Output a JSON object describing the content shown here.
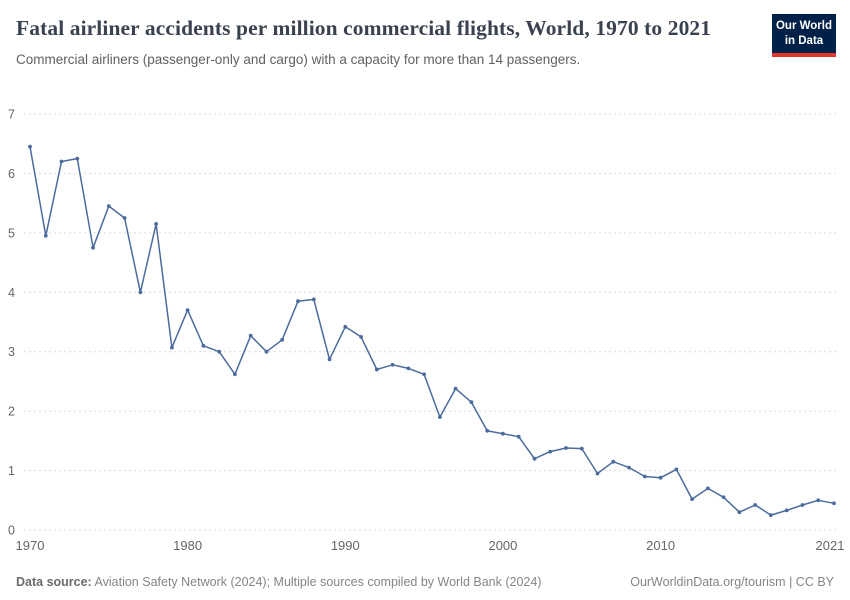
{
  "header": {
    "title": "Fatal airliner accidents per million commercial flights, World, 1970 to 2021",
    "subtitle": "Commercial airliners (passenger-only and cargo) with a capacity for more than 14 passengers.",
    "logo": {
      "line1": "Our World",
      "line2": "in Data",
      "bg_color": "#002147",
      "accent_color": "#e0362c"
    }
  },
  "footer": {
    "source_label": "Data source:",
    "source_text": " Aviation Safety Network (2024); Multiple sources compiled by World Bank (2024)",
    "credit_text": "OurWorldinData.org/tourism | CC BY"
  },
  "chart_data": {
    "type": "line",
    "title": "Fatal airliner accidents per million commercial flights, World, 1970 to 2021",
    "xlabel": "",
    "ylabel": "",
    "ylim": [
      0,
      7
    ],
    "yticks": [
      0,
      1,
      2,
      3,
      4,
      5,
      6,
      7
    ],
    "xticks": [
      1970,
      1980,
      1990,
      2000,
      2010,
      2021
    ],
    "grid": "dashed-horizontal",
    "line_color": "#4c6b9c",
    "tick_color": "#666666",
    "grid_color": "#dcdcdc",
    "x": [
      1970,
      1971,
      1972,
      1973,
      1974,
      1975,
      1976,
      1977,
      1978,
      1979,
      1980,
      1981,
      1982,
      1983,
      1984,
      1985,
      1986,
      1987,
      1988,
      1989,
      1990,
      1991,
      1992,
      1993,
      1994,
      1995,
      1996,
      1997,
      1998,
      1999,
      2000,
      2001,
      2002,
      2003,
      2004,
      2005,
      2006,
      2007,
      2008,
      2009,
      2010,
      2011,
      2012,
      2013,
      2014,
      2015,
      2016,
      2017,
      2018,
      2019,
      2020,
      2021
    ],
    "values": [
      6.45,
      4.95,
      6.2,
      6.25,
      4.75,
      5.45,
      5.25,
      4.0,
      5.15,
      3.07,
      3.7,
      3.1,
      3.0,
      2.62,
      3.27,
      3.0,
      3.2,
      3.85,
      3.88,
      2.87,
      3.42,
      3.25,
      2.7,
      2.78,
      2.72,
      2.62,
      1.9,
      2.38,
      2.15,
      1.67,
      1.62,
      1.57,
      1.2,
      1.32,
      1.38,
      1.37,
      0.95,
      1.15,
      1.05,
      0.9,
      0.88,
      1.02,
      0.52,
      0.7,
      0.55,
      0.3,
      0.42,
      0.25,
      0.33,
      0.42,
      0.5,
      0.45
    ]
  }
}
